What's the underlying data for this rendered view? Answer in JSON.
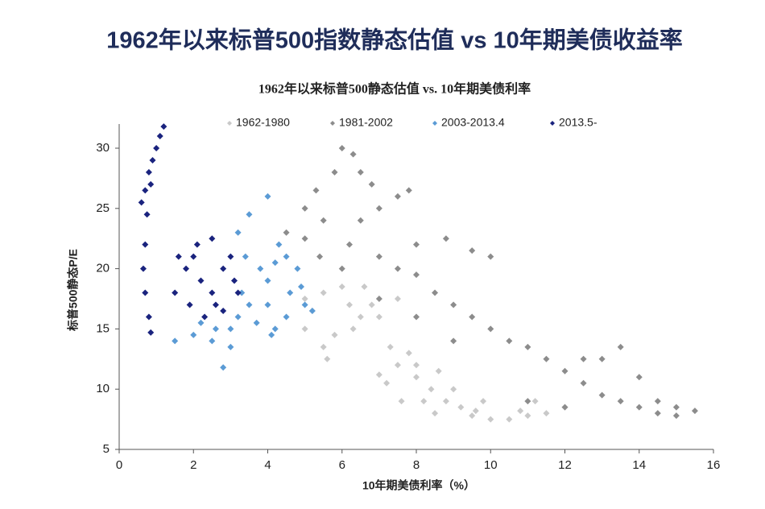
{
  "heading": "1962年以来标普500指数静态估值 vs 10年期美债收益率",
  "chart_data": {
    "type": "scatter",
    "title": "1962年以来标普500静态估值 vs. 10年期美债利率",
    "x_label": "10年期美债利率（%）",
    "y_label": "标普500静态P/E",
    "xlim": [
      0,
      16
    ],
    "xticks": [
      0,
      2,
      4,
      6,
      8,
      10,
      12,
      14,
      16
    ],
    "ylim": [
      5,
      32
    ],
    "yticks": [
      5,
      10,
      15,
      20,
      25,
      30
    ],
    "grid": false,
    "legend": "top",
    "series": [
      {
        "name": "1962-1980",
        "color": "#c9c9c9",
        "x": [
          5,
          5.5,
          6,
          6.2,
          6.5,
          5,
          5.5,
          5.8,
          6.8,
          7,
          7.3,
          7.5,
          7.2,
          7.6,
          8,
          8.2,
          8.5,
          8.8,
          9,
          8.6,
          9.2,
          9.5,
          10,
          10.5,
          11,
          11.5,
          12,
          9.8,
          8,
          7.8,
          6.3,
          6.6,
          7.5,
          5.2,
          5.6,
          8.4,
          7,
          11.2,
          10.8,
          9.6
        ],
        "y": [
          17.5,
          18,
          18.5,
          17,
          16,
          15,
          13.5,
          14.5,
          17,
          16,
          13.5,
          12,
          10.5,
          9,
          11,
          9,
          8,
          9,
          10,
          11.5,
          8.5,
          7.8,
          7.5,
          7.5,
          7.8,
          8,
          8.5,
          9,
          12,
          13,
          15,
          18.5,
          17.5,
          16.5,
          12.5,
          10,
          11.2,
          9,
          8.2,
          8.2
        ]
      },
      {
        "name": "1981-2002",
        "color": "#8c8c8c",
        "x": [
          4.5,
          5,
          5.3,
          5.5,
          5.8,
          6,
          6.3,
          6.5,
          6.8,
          7,
          7.5,
          7.8,
          6.2,
          5.4,
          5,
          6,
          7,
          7.5,
          8,
          8.5,
          8,
          8.8,
          9.5,
          10,
          9,
          9.5,
          10,
          10.5,
          11,
          11.5,
          12,
          12.5,
          13,
          13.5,
          14,
          14.5,
          15,
          15.5,
          13,
          14,
          13.5,
          12.5,
          7,
          8,
          9,
          11,
          12,
          14.5,
          15,
          6.5
        ],
        "y": [
          23,
          25,
          26.5,
          24,
          28,
          30,
          29.5,
          28,
          27,
          25,
          26,
          26.5,
          22,
          21,
          22.5,
          20,
          21,
          20,
          19.5,
          18,
          22,
          22.5,
          21.5,
          21,
          17,
          16,
          15,
          14,
          13.5,
          12.5,
          11.5,
          10.5,
          9.5,
          9,
          8.5,
          8,
          7.8,
          8.2,
          12.5,
          11,
          13.5,
          12.5,
          17.5,
          16,
          14,
          9,
          8.5,
          9,
          8.5,
          24
        ]
      },
      {
        "name": "2003-2013.4",
        "color": "#5b9bd5",
        "x": [
          1.5,
          2,
          2.5,
          3,
          2.8,
          3,
          3.2,
          3.5,
          3.3,
          3.4,
          3.2,
          3.5,
          3.8,
          4,
          4.2,
          4.5,
          4.8,
          4,
          4.5,
          5,
          5.2,
          4.2,
          4,
          4.3,
          4.6,
          2.2,
          2.6,
          3.7,
          4.9,
          4.1
        ],
        "y": [
          14,
          14.5,
          14,
          13.5,
          11.8,
          15,
          16,
          17,
          18,
          21,
          23,
          24.5,
          20,
          19,
          20.5,
          21,
          20,
          17,
          16,
          17,
          16.5,
          15,
          26,
          22,
          18,
          15.5,
          15,
          15.5,
          18.5,
          14.5
        ]
      },
      {
        "name": "2013.5-",
        "color": "#1a237e",
        "x": [
          0.6,
          0.7,
          0.8,
          0.9,
          1,
          1.1,
          1.2,
          0.75,
          0.85,
          0.65,
          0.7,
          0.8,
          0.85,
          0.7,
          1.5,
          1.8,
          2,
          2.2,
          2.5,
          2.5,
          2.8,
          3,
          3.1,
          2.8,
          2.3,
          1.9,
          2.1,
          1.6,
          3.2,
          2.6
        ],
        "y": [
          25.5,
          26.5,
          28,
          29,
          30,
          31,
          31.8,
          24.5,
          27,
          20,
          18,
          16,
          14.7,
          22,
          18,
          20,
          21,
          19,
          18,
          22.5,
          20,
          21,
          19,
          16.5,
          16,
          17,
          22,
          21,
          18,
          17
        ]
      }
    ]
  }
}
